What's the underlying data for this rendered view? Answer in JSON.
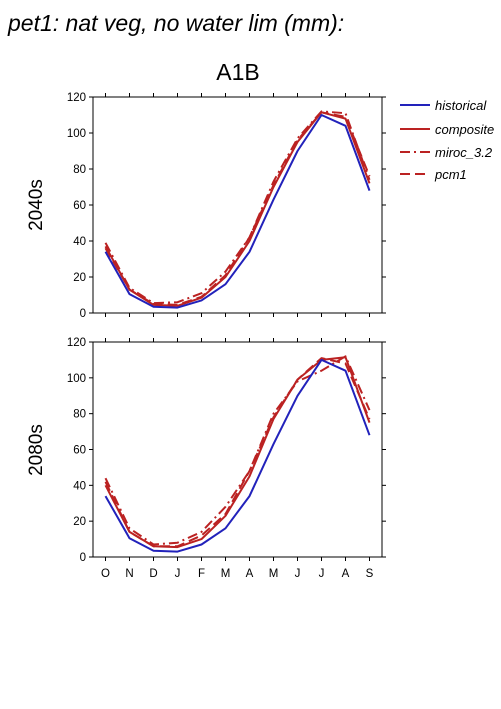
{
  "figure": {
    "title": "pet1: nat veg, no water lim (mm):",
    "scenario": "A1B"
  },
  "colors": {
    "historical": "#2222bb",
    "projection": "#bb2222"
  },
  "legend": [
    {
      "name": "historical",
      "dash": "solid",
      "color": "#2222bb"
    },
    {
      "name": "composite",
      "dash": "solid",
      "color": "#bb2222"
    },
    {
      "name": "miroc_3.2",
      "dash": "dashdot",
      "color": "#bb2222"
    },
    {
      "name": "pcm1",
      "dash": "dash",
      "color": "#bb2222"
    }
  ],
  "chart_data": [
    {
      "type": "line",
      "panel_label": "2040s",
      "categories": [
        "O",
        "N",
        "D",
        "J",
        "F",
        "M",
        "A",
        "M",
        "J",
        "J",
        "A",
        "S"
      ],
      "ylim": [
        0,
        120
      ],
      "yticks": [
        0,
        20,
        40,
        60,
        80,
        100,
        120
      ],
      "grid": false,
      "legend_position": "right",
      "series": [
        {
          "name": "historical",
          "values": [
            34,
            10.5,
            3.5,
            3,
            7,
            16,
            34,
            63,
            90,
            110,
            104,
            68
          ]
        },
        {
          "name": "composite",
          "values": [
            37,
            13,
            4.5,
            4,
            8.5,
            20,
            40,
            70,
            95,
            111.5,
            108,
            72
          ]
        },
        {
          "name": "miroc_3.2",
          "values": [
            39,
            14,
            5.5,
            6,
            11,
            23,
            42,
            73,
            97,
            112,
            111,
            74
          ]
        },
        {
          "name": "pcm1",
          "values": [
            36,
            13,
            5,
            4.5,
            9,
            21,
            42,
            71,
            96,
            111.5,
            109,
            76
          ]
        }
      ]
    },
    {
      "type": "line",
      "panel_label": "2080s",
      "categories": [
        "O",
        "N",
        "D",
        "J",
        "F",
        "M",
        "A",
        "M",
        "J",
        "J",
        "A",
        "S"
      ],
      "ylim": [
        0,
        120
      ],
      "yticks": [
        0,
        20,
        40,
        60,
        80,
        100,
        120
      ],
      "grid": false,
      "legend_position": "right",
      "series": [
        {
          "name": "historical",
          "values": [
            34,
            10.5,
            3.5,
            3,
            7,
            16,
            34,
            63,
            90,
            110,
            104,
            68
          ]
        },
        {
          "name": "composite",
          "values": [
            40,
            14,
            6,
            5.5,
            10,
            23,
            45,
            77,
            99,
            110,
            111.5,
            75
          ]
        },
        {
          "name": "miroc_3.2",
          "values": [
            44,
            16,
            7,
            8,
            14,
            28,
            48,
            80,
            98,
            104,
            112,
            82
          ]
        },
        {
          "name": "pcm1",
          "values": [
            42,
            14,
            6,
            6,
            12,
            24,
            48,
            78,
            99,
            111,
            108,
            77
          ]
        }
      ]
    }
  ]
}
